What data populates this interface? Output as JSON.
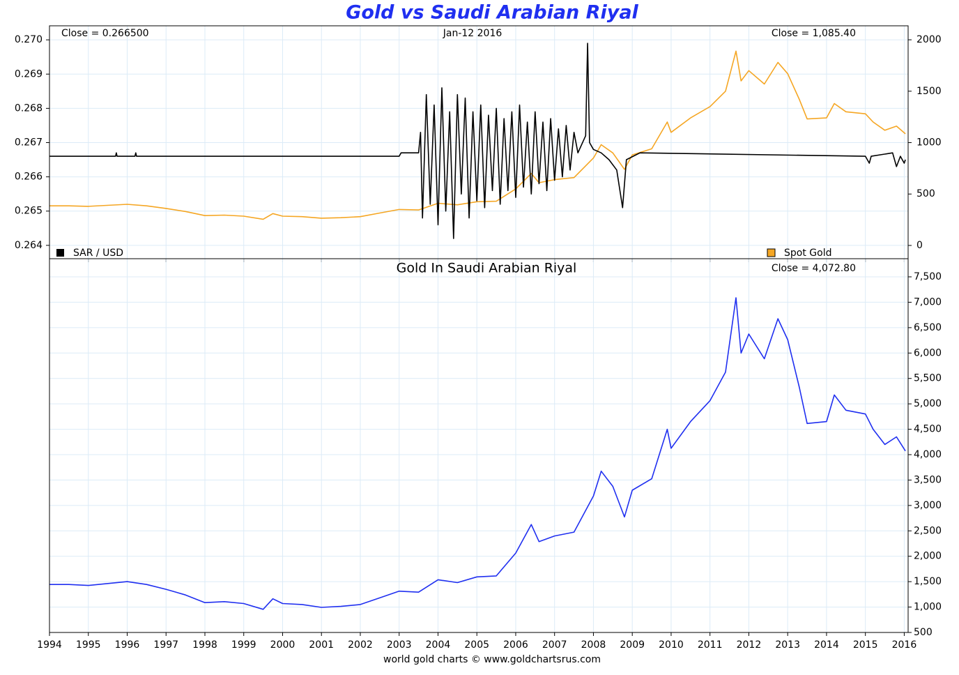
{
  "chart_data": [
    {
      "type": "line",
      "title": "Gold vs Saudi Arabian Riyal",
      "annotation": "Jan-12 2016",
      "grid": true,
      "xlim": [
        1994,
        2016.1
      ],
      "xticks": [
        1994,
        1995,
        1996,
        1997,
        1998,
        1999,
        2000,
        2001,
        2002,
        2003,
        2004,
        2005,
        2006,
        2007,
        2008,
        2009,
        2010,
        2011,
        2012,
        2013,
        2014,
        2015,
        2016
      ],
      "ylim": [
        0.26361,
        0.27041
      ],
      "yticks": [
        {
          "value": 0.264,
          "label": "0.264"
        },
        {
          "value": 0.265,
          "label": "0.265"
        },
        {
          "value": 0.266,
          "label": "0.266"
        },
        {
          "value": 0.267,
          "label": "0.267"
        },
        {
          "value": 0.268,
          "label": "0.268"
        },
        {
          "value": 0.269,
          "label": "0.269"
        },
        {
          "value": 0.27,
          "label": "0.270"
        }
      ],
      "y2lim": [
        -129,
        2136
      ],
      "y2ticks": [
        0,
        500,
        1000,
        1500,
        2000
      ],
      "series": [
        {
          "name": "SAR / USD",
          "color": "#000000",
          "close_label": "Close = 0.266500",
          "x": [
            1994,
            1995.7,
            1995.72,
            1995.74,
            1996.2,
            1996.22,
            1996.24,
            2003.0,
            2003.05,
            2003.5,
            2003.55,
            2003.6,
            2003.7,
            2003.8,
            2003.9,
            2004.0,
            2004.1,
            2004.2,
            2004.3,
            2004.4,
            2004.5,
            2004.6,
            2004.7,
            2004.8,
            2004.9,
            2005.0,
            2005.1,
            2005.2,
            2005.3,
            2005.4,
            2005.5,
            2005.6,
            2005.7,
            2005.8,
            2005.9,
            2006.0,
            2006.1,
            2006.2,
            2006.3,
            2006.4,
            2006.5,
            2006.6,
            2006.7,
            2006.8,
            2006.9,
            2007.0,
            2007.1,
            2007.2,
            2007.3,
            2007.4,
            2007.5,
            2007.6,
            2007.8,
            2007.85,
            2007.9,
            2008.0,
            2008.2,
            2008.4,
            2008.6,
            2008.75,
            2008.85,
            2009.2,
            2015.0,
            2015.1,
            2015.15,
            2015.7,
            2015.8,
            2015.9,
            2016.0,
            2016.03
          ],
          "values": [
            0.2666,
            0.2666,
            0.2667,
            0.2666,
            0.2666,
            0.2667,
            0.2666,
            0.2666,
            0.2667,
            0.2667,
            0.2673,
            0.2648,
            0.2684,
            0.2652,
            0.2681,
            0.2646,
            0.2686,
            0.265,
            0.2679,
            0.2642,
            0.2684,
            0.2655,
            0.2683,
            0.2648,
            0.2679,
            0.2653,
            0.2681,
            0.2651,
            0.2678,
            0.2656,
            0.268,
            0.2652,
            0.2677,
            0.2656,
            0.2679,
            0.2654,
            0.2681,
            0.2657,
            0.2676,
            0.2655,
            0.2679,
            0.2658,
            0.2676,
            0.2656,
            0.2677,
            0.2659,
            0.2674,
            0.266,
            0.2675,
            0.2662,
            0.2673,
            0.2667,
            0.2672,
            0.2699,
            0.267,
            0.2668,
            0.2667,
            0.2665,
            0.2662,
            0.2651,
            0.2665,
            0.2667,
            0.2666,
            0.2664,
            0.2666,
            0.2667,
            0.2663,
            0.2666,
            0.2664,
            0.2665
          ]
        },
        {
          "name": "Spot Gold",
          "color": "#f5a623",
          "axis": "y2",
          "close_label": "Close = 1,085.40",
          "x": [
            1994,
            1994.5,
            1995,
            1996,
            1996.5,
            1997,
            1997.5,
            1998,
            1998.5,
            1999,
            1999.5,
            1999.75,
            2000,
            2000.5,
            2001,
            2001.5,
            2002,
            2002.5,
            2003,
            2003.5,
            2004,
            2004.5,
            2005,
            2005.5,
            2006,
            2006.4,
            2006.6,
            2007,
            2007.5,
            2008,
            2008.2,
            2008.5,
            2008.8,
            2009,
            2009.5,
            2009.9,
            2010,
            2010.5,
            2011,
            2011.4,
            2011.67,
            2011.8,
            2012,
            2012.4,
            2012.75,
            2013,
            2013.3,
            2013.5,
            2014,
            2014.2,
            2014.5,
            2015,
            2015.2,
            2015.5,
            2015.8,
            2016.03
          ],
          "values": [
            385,
            385,
            380,
            400,
            385,
            360,
            330,
            290,
            295,
            285,
            255,
            310,
            285,
            280,
            265,
            270,
            280,
            315,
            350,
            345,
            410,
            395,
            425,
            430,
            550,
            700,
            610,
            640,
            660,
            850,
            980,
            900,
            740,
            880,
            940,
            1200,
            1100,
            1240,
            1350,
            1500,
            1890,
            1600,
            1700,
            1570,
            1780,
            1670,
            1420,
            1230,
            1240,
            1380,
            1300,
            1280,
            1200,
            1120,
            1160,
            1085.4
          ]
        }
      ]
    },
    {
      "type": "line",
      "title": "Gold In Saudi Arabian Riyal",
      "close_label": "Close = 4,072.80",
      "source": "world gold charts © www.goldchartsrus.com",
      "grid": true,
      "xlim": [
        1994,
        2016.1
      ],
      "xticks": [
        1994,
        1995,
        1996,
        1997,
        1998,
        1999,
        2000,
        2001,
        2002,
        2003,
        2004,
        2005,
        2006,
        2007,
        2008,
        2009,
        2010,
        2011,
        2012,
        2013,
        2014,
        2015,
        2016
      ],
      "ylim": [
        500,
        7857
      ],
      "yticks": [
        500,
        {
          "value": 1000,
          "label": "1,000"
        },
        {
          "value": 1500,
          "label": "1,500"
        },
        {
          "value": 2000,
          "label": "2,000"
        },
        {
          "value": 2500,
          "label": "2,500"
        },
        {
          "value": 3000,
          "label": "3,000"
        },
        {
          "value": 3500,
          "label": "3,500"
        },
        {
          "value": 4000,
          "label": "4,000"
        },
        {
          "value": 4500,
          "label": "4,500"
        },
        {
          "value": 5000,
          "label": "5,000"
        },
        {
          "value": 5500,
          "label": "5,500"
        },
        {
          "value": 6000,
          "label": "6,000"
        },
        {
          "value": 6500,
          "label": "6,500"
        },
        {
          "value": 7000,
          "label": "7,000"
        },
        {
          "value": 7500,
          "label": "7,500"
        }
      ],
      "series": [
        {
          "color": "#1f2ff0",
          "x": [
            1994,
            1994.5,
            1995,
            1996,
            1996.5,
            1997,
            1997.5,
            1998,
            1998.5,
            1999,
            1999.5,
            1999.75,
            2000,
            2000.5,
            2001,
            2001.5,
            2002,
            2002.5,
            2003,
            2003.5,
            2004,
            2004.5,
            2005,
            2005.5,
            2006,
            2006.4,
            2006.6,
            2007,
            2007.5,
            2008,
            2008.2,
            2008.5,
            2008.8,
            2009,
            2009.5,
            2009.9,
            2010,
            2010.5,
            2011,
            2011.4,
            2011.67,
            2011.8,
            2012,
            2012.4,
            2012.75,
            2013,
            2013.3,
            2013.5,
            2014,
            2014.2,
            2014.5,
            2015,
            2015.2,
            2015.5,
            2015.8,
            2016.03
          ],
          "values": [
            1444,
            1444,
            1425,
            1500,
            1444,
            1350,
            1238,
            1088,
            1106,
            1069,
            956,
            1163,
            1069,
            1050,
            994,
            1013,
            1050,
            1181,
            1313,
            1294,
            1538,
            1481,
            1594,
            1613,
            2063,
            2625,
            2288,
            2400,
            2475,
            3188,
            3675,
            3375,
            2775,
            3300,
            3525,
            4500,
            4125,
            4650,
            5063,
            5625,
            7088,
            6000,
            6375,
            5888,
            6675,
            6263,
            5325,
            4613,
            4650,
            5175,
            4875,
            4800,
            4500,
            4200,
            4350,
            4072.8
          ]
        }
      ]
    }
  ]
}
